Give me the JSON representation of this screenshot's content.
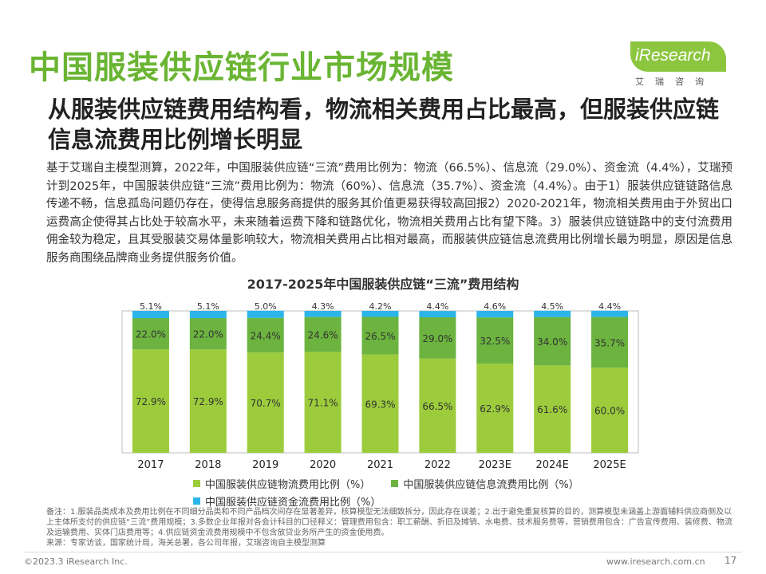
{
  "header": {
    "title": "中国服装供应链行业市场规模",
    "logo_text": "iResearch",
    "logo_sub": "艾瑞咨询"
  },
  "subtitle": "从服装供应链费用结构看，物流相关费用占比最高，但服装供应链信息流费用比例增长明显",
  "body_text": "基于艾瑞自主模型测算，2022年，中国服装供应链“三流”费用比例为：物流（66.5%）、信息流（29.0%）、资金流（4.4%），艾瑞预计到2025年，中国服装供应链“三流”费用比例为：物流（60%）、信息流（35.7%）、资金流（4.4%）。由于1）服装供应链链路信息传递不畅，信息孤岛问题仍存在，使得信息服务商提供的服务其价值更易获得较高回报2）2020-2021年，物流相关费用由于外贸出口运费高企使得其占比处于较高水平，未来随着运费下降和链路优化，物流相关费用占比有望下降。3）服装供应链链路中的支付流费用佣金较为稳定，且其受服装交易体量影响较大，物流相关费用占比相对最高，而服装供应链信息流费用比例增长最为明显，原因是信息服务商围绕品牌商业务提供服务价值。",
  "chart_data": {
    "type": "bar",
    "stacked": true,
    "title": "2017-2025年中国服装供应链“三流”费用结构",
    "categories": [
      "2017",
      "2018",
      "2019",
      "2020",
      "2021",
      "2022",
      "2023E",
      "2024E",
      "2025E"
    ],
    "series": [
      {
        "name": "中国服装供应链物流费用比例（%）",
        "color": "#9ccc3c",
        "values": [
          72.9,
          72.9,
          70.7,
          71.1,
          69.3,
          66.5,
          62.9,
          61.6,
          60.0
        ],
        "labels": [
          "72.9%",
          "72.9%",
          "70.7%",
          "71.1%",
          "69.3%",
          "66.5%",
          "62.9%",
          "61.6%",
          "60.0%"
        ]
      },
      {
        "name": "中国服装供应链信息流费用比例（%）",
        "color": "#6cb43f",
        "values": [
          22.0,
          22.0,
          24.4,
          24.6,
          26.5,
          29.0,
          32.5,
          34.0,
          35.7
        ],
        "labels": [
          "22.0%",
          "22.0%",
          "24.4%",
          "24.6%",
          "26.5%",
          "29.0%",
          "32.5%",
          "34.0%",
          "35.7%"
        ]
      },
      {
        "name": "中国服装供应链资金流费用比例（%）",
        "color": "#2bb5e8",
        "values": [
          5.1,
          5.1,
          5.0,
          4.3,
          4.2,
          4.4,
          4.6,
          4.5,
          4.4
        ],
        "labels": [
          "5.1%",
          "5.1%",
          "5.0%",
          "4.3%",
          "4.2%",
          "4.4%",
          "4.6%",
          "4.5%",
          "4.4%"
        ]
      }
    ],
    "ylim": [
      0,
      100
    ],
    "legend_position": "bottom"
  },
  "notes": [
    "备注：1.服装品类成本及费用比例在不同细分品类和不同产品档次间存在显著差异，核算模型无法细致拆分，因此存在误差；2.出于避免重复核算的目的，测算模型未涵盖上游面辅料供应商侧及以上主体所支付的供应链“三流”费用规模；3.多数企业年报对各会计科目的口径释义：管理费用包含：职工薪酬、折旧及摊销、水电费、技术服务费等，营销费用包含：广告宣传费用、装修费、物流及运输费用、实体门店费用等；4.供应链资金流费用规模中不包含放贷业务所产生的资金使用费。",
    "来源：专家访谈，国家统计局，海关总署，各公司年报，艾瑞咨询自主模型测算"
  ],
  "footer": {
    "copyright": "©2023.3 iResearch Inc.",
    "url": "www.iresearch.com.cn",
    "page": "17"
  }
}
